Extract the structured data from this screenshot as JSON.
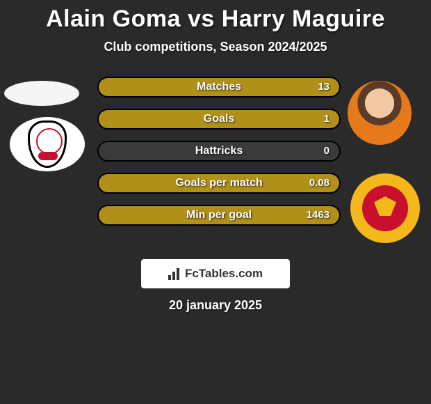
{
  "header": {
    "player1_name": "Alain Goma",
    "vs_text": "vs",
    "player2_name": "Harry Maguire",
    "player1_color": "#ffffff",
    "player2_color": "#ffffff",
    "subtitle": "Club competitions, Season 2024/2025"
  },
  "stats": {
    "bar_color_p2": "#b09018",
    "bar_border_color": "#000000",
    "rows": [
      {
        "label": "Matches",
        "value_right": "13",
        "fill_pct": 100
      },
      {
        "label": "Goals",
        "value_right": "1",
        "fill_pct": 100
      },
      {
        "label": "Hattricks",
        "value_right": "0",
        "fill_pct": 0
      },
      {
        "label": "Goals per match",
        "value_right": "0.08",
        "fill_pct": 100
      },
      {
        "label": "Min per goal",
        "value_right": "1463",
        "fill_pct": 100
      }
    ]
  },
  "branding": {
    "site_label": "FcTables.com"
  },
  "footer": {
    "date_text": "20 january 2025"
  },
  "left_side": {
    "portrait_placeholder_color": "#f5f5f5",
    "club_name": "fulham-badge"
  },
  "right_side": {
    "portrait_name": "harry-maguire-portrait",
    "club_name": "manchester-united-badge"
  }
}
